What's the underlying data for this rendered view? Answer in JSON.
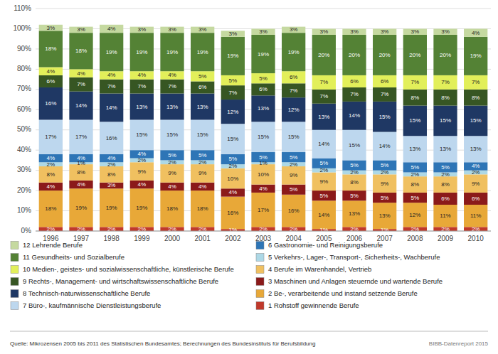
{
  "chart_data": {
    "type": "bar",
    "stacked": true,
    "data_labels": true,
    "grid": true,
    "legend": "bottom",
    "categories": [
      "1996",
      "1997",
      "1998",
      "1999",
      "2000",
      "2001",
      "2002",
      "2003",
      "2004",
      "2005",
      "2006",
      "2007",
      "2008",
      "2009",
      "2010"
    ],
    "ylim": [
      0,
      110
    ],
    "yticks": [
      {
        "value": 0,
        "label": "0%"
      },
      {
        "value": 10,
        "label": "10%"
      },
      {
        "value": 20,
        "label": "20%"
      },
      {
        "value": 30,
        "label": "30%"
      },
      {
        "value": 40,
        "label": "40%"
      },
      {
        "value": 50,
        "label": "50%"
      },
      {
        "value": 60,
        "label": "60%"
      },
      {
        "value": 70,
        "label": "70%"
      },
      {
        "value": 80,
        "label": "80%"
      },
      {
        "value": 90,
        "label": "90%"
      },
      {
        "value": 100,
        "label": "100%"
      },
      {
        "value": 110,
        "label": "110%"
      }
    ],
    "series": [
      {
        "name": "1 Rohstoff gewinnende Berufe",
        "color": "#c0392b",
        "values": [
          2,
          2,
          2,
          2,
          2,
          2,
          1,
          2,
          2,
          1,
          2,
          1,
          2,
          2,
          2
        ],
        "value_labels": [
          "2%",
          "2%",
          "2%",
          "2%",
          "2%",
          "2%",
          "1%",
          "2%",
          "2%",
          "1%",
          "2%",
          "1%",
          "2%",
          "2%",
          "2%"
        ]
      },
      {
        "name": "2 Be-, verarbeitende und instand setzende Berufe",
        "color": "#e8a838",
        "values": [
          18,
          19,
          19,
          19,
          18,
          18,
          16,
          17,
          16,
          14,
          13,
          13,
          12,
          11,
          11
        ],
        "value_labels": [
          "18%",
          "19%",
          "19%",
          "19%",
          "18%",
          "18%",
          "16%",
          "17%",
          "16%",
          "14%",
          "13%",
          "13%",
          "12%",
          "11%",
          "11%"
        ]
      },
      {
        "name": "3 Maschinen und Anlagen steuernde und wartende Berufe",
        "color": "#8b1a1a",
        "values": [
          4,
          4,
          3,
          4,
          4,
          4,
          4,
          4,
          5,
          5,
          5,
          5,
          5,
          6,
          6
        ],
        "value_labels": [
          "4%",
          "4%",
          "3%",
          "4%",
          "4%",
          "4%",
          "4%",
          "4%",
          "5%",
          "5%",
          "5%",
          "5%",
          "5%",
          "6%",
          "6%"
        ]
      },
      {
        "name": "4 Berufe im Warenhandel, Vertrieb",
        "color": "#f0c060",
        "values": [
          8,
          8,
          8,
          9,
          9,
          9,
          10,
          10,
          9,
          9,
          8,
          9,
          8,
          8,
          9
        ],
        "value_labels": [
          "8%",
          "8%",
          "8%",
          "9%",
          "9%",
          "9%",
          "10%",
          "10%",
          "9%",
          "9%",
          "8%",
          "9%",
          "8%",
          "8%",
          "9%"
        ]
      },
      {
        "name": "5 Verkehrs-, Lager-, Transport-, Sicherheits-, Wachberufe",
        "color": "#add8e6",
        "values": [
          2,
          1,
          2,
          2,
          2,
          2,
          2,
          1,
          2,
          2,
          2,
          2,
          2,
          2,
          2
        ],
        "value_labels": [
          "2%",
          "1%",
          "2%",
          "2%",
          "2%",
          "2%",
          "2%",
          "1%",
          "2%",
          "2%",
          "2%",
          "2%",
          "2%",
          "2%",
          "2%"
        ]
      },
      {
        "name": "6 Gastronomie- und Reinigungsberufe",
        "color": "#2e75b6",
        "values": [
          4,
          4,
          4,
          4,
          5,
          5,
          5,
          5,
          5,
          5,
          5,
          5,
          5,
          5,
          4
        ],
        "value_labels": [
          "4%",
          "4%",
          "4%",
          "4%",
          "5%",
          "5%",
          "5%",
          "5%",
          "5%",
          "5%",
          "5%",
          "5%",
          "5%",
          "5%",
          "4%"
        ]
      },
      {
        "name": "7 Büro-, kaufmännische Dienstleistungsberufe",
        "color": "#bdd7ee",
        "values": [
          17,
          17,
          16,
          15,
          15,
          15,
          15,
          15,
          15,
          14,
          15,
          14,
          13,
          13,
          13
        ],
        "value_labels": [
          "17%",
          "17%",
          "16%",
          "15%",
          "15%",
          "15%",
          "15%",
          "15%",
          "15%",
          "14%",
          "15%",
          "14%",
          "13%",
          "13%",
          "13%"
        ]
      },
      {
        "name": "8 Technisch-naturwissenschaftliche Berufe",
        "color": "#1f3864",
        "values": [
          16,
          14,
          14,
          13,
          13,
          13,
          12,
          13,
          12,
          13,
          14,
          15,
          15,
          15,
          15
        ],
        "value_labels": [
          "16%",
          "14%",
          "14%",
          "13%",
          "13%",
          "13%",
          "12%",
          "13%",
          "12%",
          "13%",
          "14%",
          "15%",
          "15%",
          "15%",
          "15%"
        ]
      },
      {
        "name": "9 Rechts-, Management- und wirtschaftswissenschaftliche Berufe",
        "color": "#375623",
        "values": [
          6,
          7,
          7,
          7,
          7,
          6,
          7,
          6,
          7,
          7,
          7,
          7,
          8,
          8,
          8
        ],
        "value_labels": [
          "6%",
          "7%",
          "7%",
          "7%",
          "7%",
          "6%",
          "7%",
          "6%",
          "7%",
          "7%",
          "7%",
          "7%",
          "8%",
          "8%",
          "8%"
        ]
      },
      {
        "name": "10 Medien-, geistes- und sozialwissenschaftliche, künstlerische Berufe",
        "color": "#e2ef5a",
        "values": [
          4,
          4,
          4,
          4,
          4,
          5,
          5,
          5,
          6,
          7,
          6,
          6,
          7,
          7,
          7
        ],
        "value_labels": [
          "4%",
          "4%",
          "4%",
          "4%",
          "4%",
          "5%",
          "5%",
          "5%",
          "6%",
          "7%",
          "6%",
          "6%",
          "7%",
          "7%",
          "7%"
        ]
      },
      {
        "name": "11 Gesundheits- und Sozialberufe",
        "color": "#548235",
        "values": [
          18,
          18,
          19,
          19,
          19,
          19,
          19,
          19,
          19,
          20,
          20,
          20,
          20,
          20,
          19
        ],
        "value_labels": [
          "18%",
          "18%",
          "19%",
          "19%",
          "19%",
          "19%",
          "19%",
          "19%",
          "19%",
          "20%",
          "20%",
          "20%",
          "20%",
          "20%",
          "19%"
        ]
      },
      {
        "name": "12 Lehrende Berufe",
        "color": "#c5d9a0",
        "values": [
          3,
          3,
          4,
          3,
          3,
          3,
          3,
          3,
          3,
          3,
          3,
          3,
          3,
          3,
          4
        ],
        "value_labels": [
          "3%",
          "3%",
          "4%",
          "3%",
          "3%",
          "3%",
          "3%",
          "3%",
          "3%",
          "3%",
          "3%",
          "3%",
          "3%",
          "3%",
          "4%"
        ]
      }
    ],
    "annotations": [
      "Quelle: Mikrozensen 2005 bis 2011 des Statistischen Bundesamtes; Berechnungen des Bundesinstituts für Berufsbildung",
      "BIBB-Datenreport 2015"
    ]
  }
}
